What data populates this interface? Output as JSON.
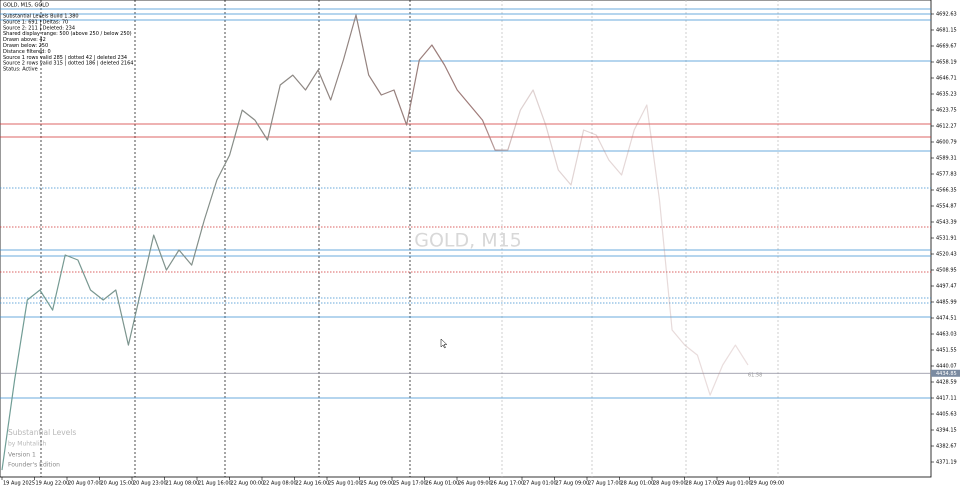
{
  "header": {
    "title": "GOLD, M15, GOLD"
  },
  "info_panel": [
    "Substantial Levels Build 1.380",
    "Source 1: 691 | Deltas: 70",
    "Source 2: 211 | Deleted: 234",
    "Shared display range: 500 (above 250 / below 250)",
    "Drawn above: 42",
    "Drawn below: 250",
    "Distance filtered: 0",
    "Source 1 rows valid 285 | dotted 42 | deleted 234",
    "Source 2 rows valid 315 | dotted 186 | deleted 2164",
    "Status: Active"
  ],
  "watermark": "GOLD, M15",
  "branding": [
    "Substantial Levels",
    "by Muhtalish",
    "Version 1",
    "Founder's Edition"
  ],
  "level_note": "61.58",
  "price_axis": {
    "ylim": [
      4360.43,
      4702.67
    ],
    "yticks": [
      4371.19,
      4382.67,
      4394.15,
      4405.63,
      4417.11,
      4428.59,
      4440.07,
      4451.55,
      4463.03,
      4474.51,
      4485.99,
      4497.47,
      4508.95,
      4520.43,
      4531.91,
      4543.39,
      4554.87,
      4566.35,
      4577.83,
      4589.31,
      4600.79,
      4612.27,
      4623.75,
      4635.23,
      4646.71,
      4658.19,
      4669.67,
      4681.15,
      4692.63
    ],
    "current_price": 4434.85
  },
  "time_axis": {
    "labels": [
      "19 Aug 2025",
      "19 Aug 22:00",
      "20 Aug 07:00",
      "20 Aug 15:00",
      "20 Aug 23:00",
      "21 Aug 08:00",
      "21 Aug 16:00",
      "22 Aug 00:00",
      "22 Aug 08:00",
      "22 Aug 16:00",
      "25 Aug 01:00",
      "25 Aug 09:00",
      "25 Aug 17:00",
      "26 Aug 01:00",
      "26 Aug 09:00",
      "26 Aug 17:00",
      "27 Aug 01:00",
      "27 Aug 09:00",
      "27 Aug 17:00",
      "28 Aug 01:00",
      "28 Aug 09:00",
      "28 Aug 17:00",
      "29 Aug 01:00",
      "29 Aug 09:00"
    ]
  },
  "price_series": {
    "color": "#6f9e96",
    "values": [
      4365.4,
      4430.0,
      4487.4,
      4494.6,
      4480.2,
      4519.7,
      4516.1,
      4494.6,
      4487.4,
      4494.6,
      4455.1,
      4494.6,
      4534.0,
      4508.9,
      4523.3,
      4512.5,
      4544.8,
      4573.5,
      4591.4,
      4623.7,
      4616.5,
      4602.2,
      4641.7,
      4648.8,
      4638.1,
      4652.4,
      4630.9,
      4659.6,
      4691.9,
      4648.8,
      4634.5,
      4638.1,
      4613.0,
      4659.6,
      4670.4,
      4656.0,
      4638.1,
      4627.3,
      4616.5,
      4595.0,
      4595.0,
      4623.7,
      4638.1,
      4613.0,
      4580.7,
      4569.9,
      4609.4,
      4605.8,
      4587.8,
      4577.1,
      4609.4,
      4627.3,
      4559.1,
      4465.9,
      4455.1,
      4447.9,
      4419.2,
      4440.8,
      4455.1,
      4440.8
    ]
  }
}
